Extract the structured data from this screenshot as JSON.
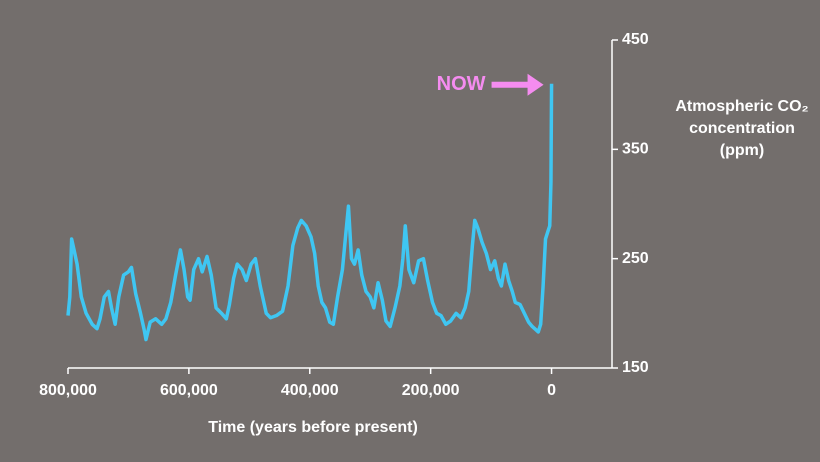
{
  "chart_data": {
    "type": "line",
    "xlabel": "Time (years before present)",
    "ylabel": [
      "Atmospheric CO₂",
      "concentration",
      "(ppm)"
    ],
    "annotation": "NOW",
    "annotation_color": "#f58cf0",
    "xlim": [
      800000,
      -100000
    ],
    "xticks": [
      {
        "value": 800000,
        "label": "800,000"
      },
      {
        "value": 600000,
        "label": "600,000"
      },
      {
        "value": 400000,
        "label": "400,000"
      },
      {
        "value": 200000,
        "label": "200,000"
      },
      0
    ],
    "ylim": [
      150,
      450
    ],
    "yticks": [
      150,
      250,
      350,
      450
    ],
    "series": [
      {
        "name": "CO2",
        "color": "#3fc6f2",
        "x": [
          800000,
          797000,
          794000,
          790000,
          785000,
          778000,
          770000,
          760000,
          752000,
          747000,
          740000,
          733000,
          728000,
          722000,
          716000,
          708000,
          700000,
          695000,
          688000,
          680000,
          674000,
          671000,
          664000,
          655000,
          645000,
          638000,
          630000,
          622000,
          614000,
          608000,
          602000,
          598000,
          592000,
          584000,
          578000,
          570000,
          563000,
          555000,
          546000,
          538000,
          533000,
          526000,
          520000,
          512000,
          505000,
          497000,
          490000,
          482000,
          472000,
          465000,
          455000,
          445000,
          436000,
          428000,
          420000,
          414000,
          406000,
          398000,
          392000,
          386000,
          380000,
          374000,
          367000,
          361000,
          354000,
          346000,
          340000,
          336000,
          331000,
          326000,
          320000,
          314000,
          307000,
          300000,
          294000,
          287000,
          280000,
          274000,
          267000,
          259000,
          251000,
          246000,
          242000,
          236000,
          228000,
          220000,
          212000,
          205000,
          197000,
          190000,
          183000,
          175000,
          167000,
          158000,
          150000,
          143000,
          137000,
          131000,
          127000,
          122000,
          115000,
          108000,
          101000,
          94000,
          88000,
          83000,
          77000,
          71000,
          65000,
          60000,
          52000,
          45000,
          38000,
          32000,
          26000,
          22000,
          18000,
          14000,
          10000,
          6000,
          3000,
          2000,
          1000,
          0
        ],
        "values": [
          198,
          215,
          268,
          258,
          245,
          215,
          200,
          190,
          186,
          195,
          215,
          220,
          205,
          190,
          215,
          235,
          238,
          242,
          218,
          200,
          185,
          176,
          192,
          195,
          190,
          195,
          210,
          235,
          258,
          240,
          215,
          212,
          240,
          250,
          238,
          252,
          235,
          205,
          200,
          195,
          208,
          232,
          245,
          240,
          230,
          245,
          250,
          225,
          200,
          196,
          198,
          202,
          225,
          262,
          278,
          285,
          280,
          270,
          255,
          225,
          210,
          205,
          192,
          190,
          215,
          240,
          275,
          298,
          250,
          245,
          258,
          235,
          220,
          215,
          205,
          228,
          212,
          193,
          188,
          205,
          225,
          250,
          280,
          240,
          228,
          248,
          250,
          230,
          210,
          200,
          198,
          190,
          193,
          200,
          196,
          205,
          220,
          262,
          285,
          278,
          265,
          255,
          240,
          248,
          232,
          225,
          245,
          230,
          220,
          210,
          208,
          200,
          192,
          188,
          185,
          183,
          190,
          225,
          268,
          275,
          280,
          300,
          320,
          410
        ]
      }
    ]
  }
}
